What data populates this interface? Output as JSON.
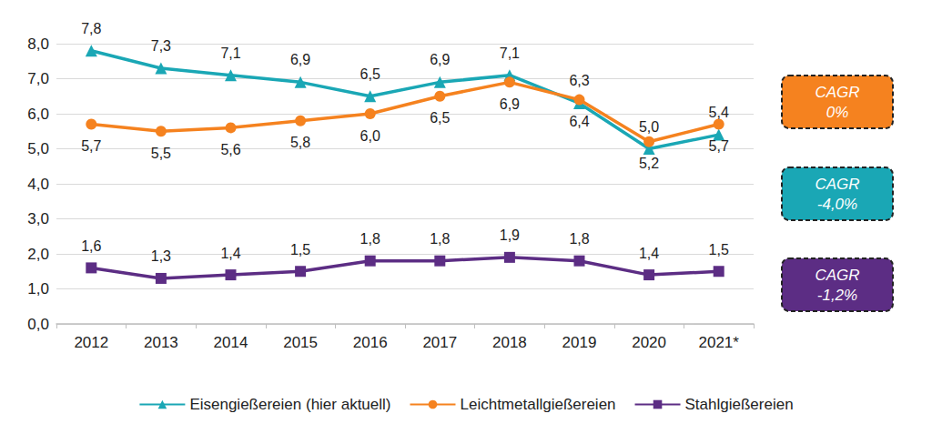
{
  "chart_data": {
    "type": "line",
    "categories": [
      "2012",
      "2013",
      "2014",
      "2015",
      "2016",
      "2017",
      "2018",
      "2019",
      "2020",
      "2021*"
    ],
    "series": [
      {
        "name": "Eisengießereien (hier aktuell)",
        "color": "#1aa7b5",
        "marker": "triangle",
        "values": [
          7.8,
          7.3,
          7.1,
          6.9,
          6.5,
          6.9,
          7.1,
          6.3,
          5.0,
          5.4
        ],
        "value_labels": [
          "7,8",
          "7,3",
          "7,1",
          "6,9",
          "6,5",
          "6,9",
          "7,1",
          "6,3",
          "5,0",
          "5,4"
        ]
      },
      {
        "name": "Leichtmetallgießereien",
        "color": "#f5821f",
        "marker": "circle",
        "values": [
          5.7,
          5.5,
          5.6,
          5.8,
          6.0,
          6.5,
          6.9,
          6.4,
          5.2,
          5.7
        ],
        "value_labels": [
          "5,7",
          "5,5",
          "5,6",
          "5,8",
          "6,0",
          "6,5",
          "6,9",
          "6,4",
          "5,2",
          "5,7"
        ]
      },
      {
        "name": "Stahlgießereien",
        "color": "#5c2d84",
        "marker": "square",
        "values": [
          1.6,
          1.3,
          1.4,
          1.5,
          1.8,
          1.8,
          1.9,
          1.8,
          1.4,
          1.5
        ],
        "value_labels": [
          "1,6",
          "1,3",
          "1,4",
          "1,5",
          "1,8",
          "1,8",
          "1,9",
          "1,8",
          "1,4",
          "1,5"
        ]
      }
    ],
    "ylim": [
      0,
      8
    ],
    "yticks": [
      {
        "value": 0,
        "label": "0,0"
      },
      {
        "value": 1,
        "label": "1,0"
      },
      {
        "value": 2,
        "label": "2,0"
      },
      {
        "value": 3,
        "label": "3,0"
      },
      {
        "value": 4,
        "label": "4,0"
      },
      {
        "value": 5,
        "label": "5,0"
      },
      {
        "value": 6,
        "label": "6,0"
      },
      {
        "value": 7,
        "label": "7,0"
      },
      {
        "value": 8,
        "label": "8,0"
      }
    ],
    "grid": true,
    "legend": "bottom",
    "data_labels": true,
    "annotations": [
      {
        "lines": [
          "CAGR",
          "0%"
        ],
        "color": "#f5821f"
      },
      {
        "lines": [
          "CAGR",
          "-4,0%"
        ],
        "color": "#1aa7b5"
      },
      {
        "lines": [
          "CAGR",
          "-1,2%"
        ],
        "color": "#5c2d84"
      }
    ]
  }
}
